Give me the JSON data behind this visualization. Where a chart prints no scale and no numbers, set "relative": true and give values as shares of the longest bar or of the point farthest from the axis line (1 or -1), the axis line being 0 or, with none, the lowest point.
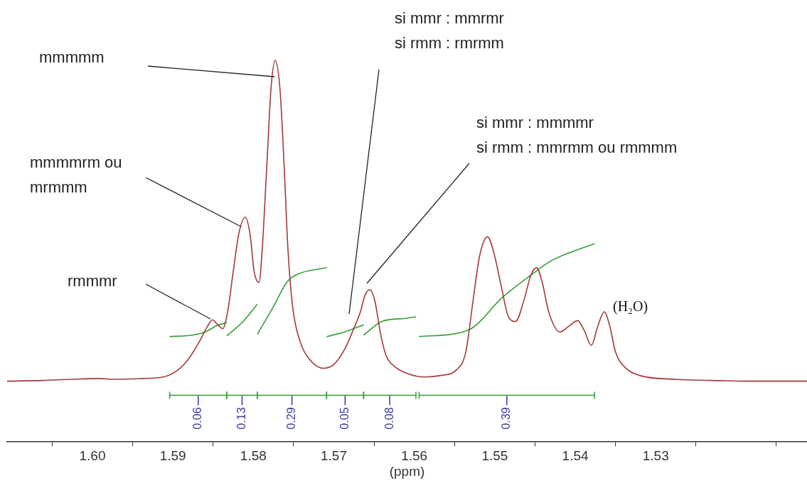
{
  "chart_data": {
    "type": "line",
    "relative": true,
    "marker": "none",
    "legend": false,
    "grid": false,
    "xlabel": "(ppm)",
    "xlim": [
      1.6106,
      1.5112
    ],
    "xticks": [
      {
        "value": 1.605,
        "label": null
      },
      {
        "value": 1.6,
        "label": "1.60"
      },
      {
        "value": 1.595,
        "label": null
      },
      {
        "value": 1.59,
        "label": "1.59"
      },
      {
        "value": 1.585,
        "label": null
      },
      {
        "value": 1.58,
        "label": "1.58"
      },
      {
        "value": 1.575,
        "label": null
      },
      {
        "value": 1.57,
        "label": "1.57"
      },
      {
        "value": 1.565,
        "label": null
      },
      {
        "value": 1.56,
        "label": "1.56"
      },
      {
        "value": 1.555,
        "label": null
      },
      {
        "value": 1.55,
        "label": "1.55"
      },
      {
        "value": 1.545,
        "label": null
      },
      {
        "value": 1.54,
        "label": "1.54"
      },
      {
        "value": 1.535,
        "label": null
      },
      {
        "value": 1.53,
        "label": "1.53"
      },
      {
        "value": 1.525,
        "label": null
      },
      {
        "value": 1.515,
        "label": null
      }
    ],
    "series": [
      {
        "color": "#a33a3a",
        "x": [
          1.6106,
          1.6062,
          1.6027,
          1.5991,
          1.5973,
          1.5938,
          1.5912,
          1.5894,
          1.5881,
          1.5867,
          1.5857,
          1.5851,
          1.5845,
          1.5838,
          1.5832,
          1.5825,
          1.5818,
          1.581,
          1.5804,
          1.5799,
          1.5793,
          1.5789,
          1.5783,
          1.5778,
          1.5773,
          1.5767,
          1.5762,
          1.5757,
          1.5751,
          1.5742,
          1.573,
          1.5713,
          1.57,
          1.5686,
          1.5676,
          1.5667,
          1.5661,
          1.5655,
          1.5649,
          1.5642,
          1.5635,
          1.5624,
          1.5607,
          1.5587,
          1.5567,
          1.5548,
          1.5536,
          1.5527,
          1.5519,
          1.5509,
          1.5501,
          1.5492,
          1.5483,
          1.5474,
          1.5464,
          1.5455,
          1.5448,
          1.5441,
          1.5433,
          1.5419,
          1.5408,
          1.5397,
          1.5389,
          1.538,
          1.5372,
          1.5364,
          1.5357,
          1.535,
          1.5337,
          1.532,
          1.5276,
          1.5231,
          1.5187,
          1.5112
        ],
        "values": [
          0.158,
          0.16,
          0.163,
          0.165,
          0.163,
          0.165,
          0.169,
          0.187,
          0.215,
          0.262,
          0.302,
          0.319,
          0.308,
          0.296,
          0.34,
          0.446,
          0.546,
          0.588,
          0.542,
          0.446,
          0.417,
          0.504,
          0.735,
          0.927,
          1,
          0.927,
          0.735,
          0.504,
          0.35,
          0.263,
          0.215,
          0.192,
          0.202,
          0.244,
          0.292,
          0.34,
          0.385,
          0.398,
          0.369,
          0.283,
          0.225,
          0.196,
          0.177,
          0.169,
          0.173,
          0.187,
          0.235,
          0.369,
          0.485,
          0.537,
          0.494,
          0.408,
          0.327,
          0.315,
          0.369,
          0.437,
          0.456,
          0.417,
          0.34,
          0.287,
          0.302,
          0.317,
          0.292,
          0.252,
          0.302,
          0.34,
          0.302,
          0.235,
          0.192,
          0.173,
          0.163,
          0.16,
          0.158,
          0.158
        ]
      },
      {
        "color": "#33a033",
        "x": [
          1.5904,
          1.5876,
          1.5859,
          1.5845,
          1.5833
        ],
        "values": [
          0.275,
          0.279,
          0.288,
          0.304,
          0.312
        ]
      },
      {
        "color": "#33a033",
        "x": [
          1.5833,
          1.5814,
          1.5795
        ],
        "values": [
          0.277,
          0.312,
          0.36
        ]
      },
      {
        "color": "#33a033",
        "x": [
          1.5795,
          1.5775,
          1.5758,
          1.5746,
          1.5709
        ],
        "values": [
          0.281,
          0.354,
          0.419,
          0.438,
          0.456
        ]
      },
      {
        "color": "#33a033",
        "x": [
          1.5709,
          1.5687,
          1.5663
        ],
        "values": [
          0.275,
          0.287,
          0.306
        ]
      },
      {
        "color": "#33a033",
        "x": [
          1.5663,
          1.564,
          1.5611,
          1.5598
        ],
        "values": [
          0.279,
          0.315,
          0.323,
          0.327
        ]
      },
      {
        "color": "#33a033",
        "x": [
          1.5594,
          1.5533,
          1.549,
          1.5449,
          1.5429,
          1.5376
        ],
        "values": [
          0.275,
          0.292,
          0.379,
          0.446,
          0.475,
          0.519
        ]
      }
    ],
    "annotations": [
      "mmmmm",
      "mmmmrm ou\nmrmmm",
      "rmmmr",
      "si mmr : mmrmr\nsi rmm : rmrmm",
      "si mmr : mmmmr\nsi rmm : mmrmm ou rmmmm",
      "(H₂O)",
      "0.06",
      "0.13",
      "0.29",
      "0.05",
      "0.08",
      "0.39"
    ]
  }
}
